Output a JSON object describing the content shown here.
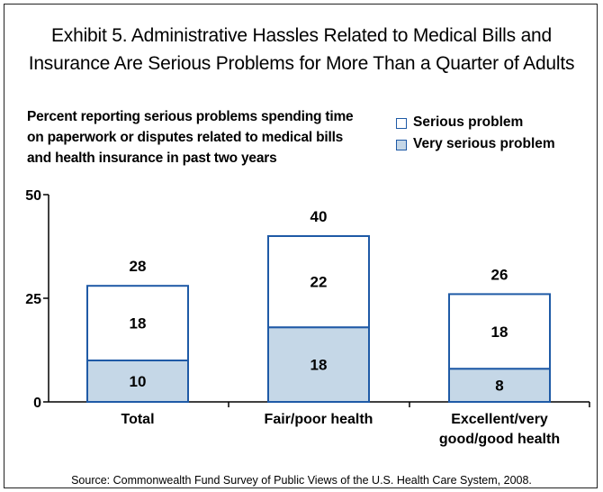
{
  "title": {
    "line1": "Exhibit 5. Administrative Hassles Related to Medical Bills and",
    "line2": "Insurance Are Serious Problems for More Than a Quarter of Adults"
  },
  "subtitle": {
    "line1": "Percent reporting serious problems spending time",
    "line2": "on paperwork or disputes related to medical bills",
    "line3": "and health insurance in past two years"
  },
  "legend": {
    "serious": "Serious problem",
    "very_serious": "Very serious problem"
  },
  "source": "Source: Commonwealth Fund Survey of Public Views of the U.S. Health Care System, 2008.",
  "colors": {
    "very_serious_fill": "#c5d7e7",
    "serious_fill": "#ffffff",
    "bar_border": "#1f5aa6"
  },
  "chart_data": {
    "type": "bar",
    "stacked": true,
    "categories": [
      "Total",
      "Fair/poor health",
      "Excellent/very good/good health"
    ],
    "category_lines": [
      [
        "Total"
      ],
      [
        "Fair/poor health"
      ],
      [
        "Excellent/very",
        "good/good health"
      ]
    ],
    "series": [
      {
        "name": "Very serious problem",
        "values": [
          10,
          18,
          8
        ]
      },
      {
        "name": "Serious problem",
        "values": [
          18,
          22,
          18
        ]
      }
    ],
    "totals": [
      28,
      40,
      26
    ],
    "ylim": [
      0,
      50
    ],
    "yticks": [
      0,
      25,
      50
    ],
    "grid": false,
    "legend_position": "top-right"
  }
}
